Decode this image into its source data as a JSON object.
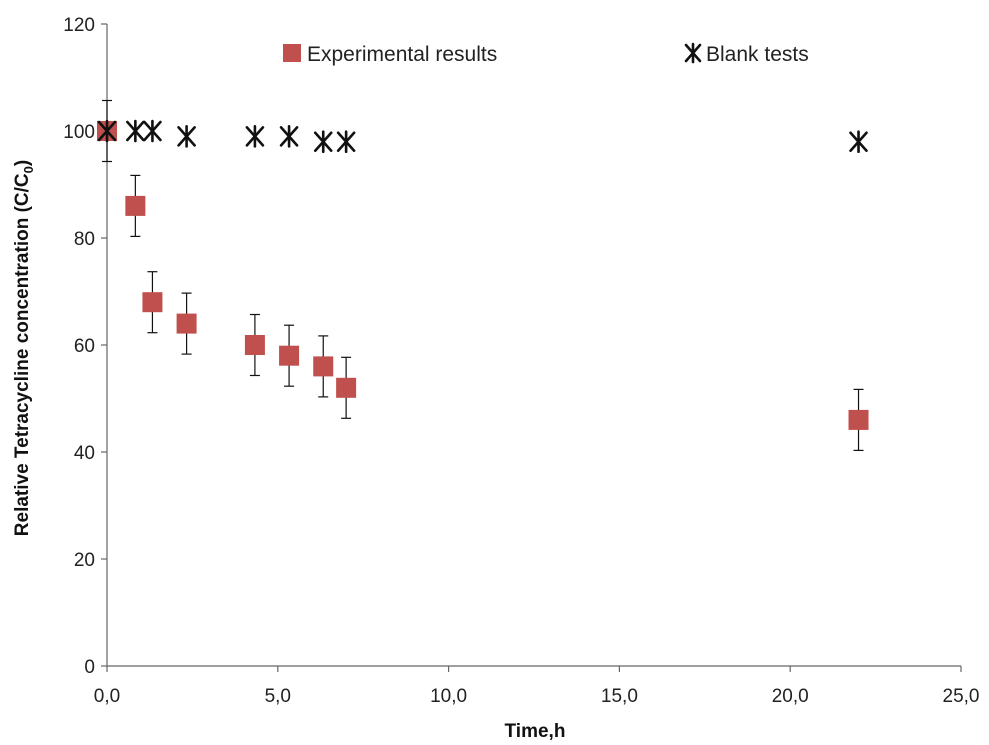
{
  "chart_data": {
    "type": "scatter",
    "xlabel": "Time,h",
    "ylabel_main": "Relative Tetracycline concentration (C/C",
    "ylabel_sub": "0",
    "ylabel_close": ")",
    "xlim": [
      0,
      25
    ],
    "ylim": [
      0,
      120
    ],
    "x_ticks": [
      0,
      5,
      10,
      15,
      20,
      25
    ],
    "x_tick_labels": [
      "0,0",
      "5,0",
      "10,0",
      "15,0",
      "20,0",
      "25,0"
    ],
    "y_ticks": [
      0,
      20,
      40,
      60,
      80,
      100,
      120
    ],
    "y_tick_labels": [
      "0",
      "20",
      "40",
      "60",
      "80",
      "100",
      "120"
    ],
    "grid": false,
    "legend_position": "top",
    "series": [
      {
        "name": "Experimental results",
        "marker": "square",
        "color": "#C0504D",
        "x": [
          0,
          0.83,
          1.33,
          2.33,
          4.33,
          5.33,
          6.33,
          7.0,
          22.0
        ],
        "y": [
          100,
          86,
          68,
          64,
          60,
          58,
          56,
          52,
          46
        ],
        "error": [
          5.7,
          5.7,
          5.7,
          5.7,
          5.7,
          5.7,
          5.7,
          5.7,
          5.7
        ]
      },
      {
        "name": "Blank tests",
        "marker": "asterisk",
        "color": "#111111",
        "x": [
          0,
          0.83,
          1.33,
          2.33,
          4.33,
          5.33,
          6.33,
          7.0,
          22.0
        ],
        "y": [
          100,
          100,
          100,
          99,
          99,
          99,
          98,
          98,
          98
        ]
      }
    ]
  }
}
